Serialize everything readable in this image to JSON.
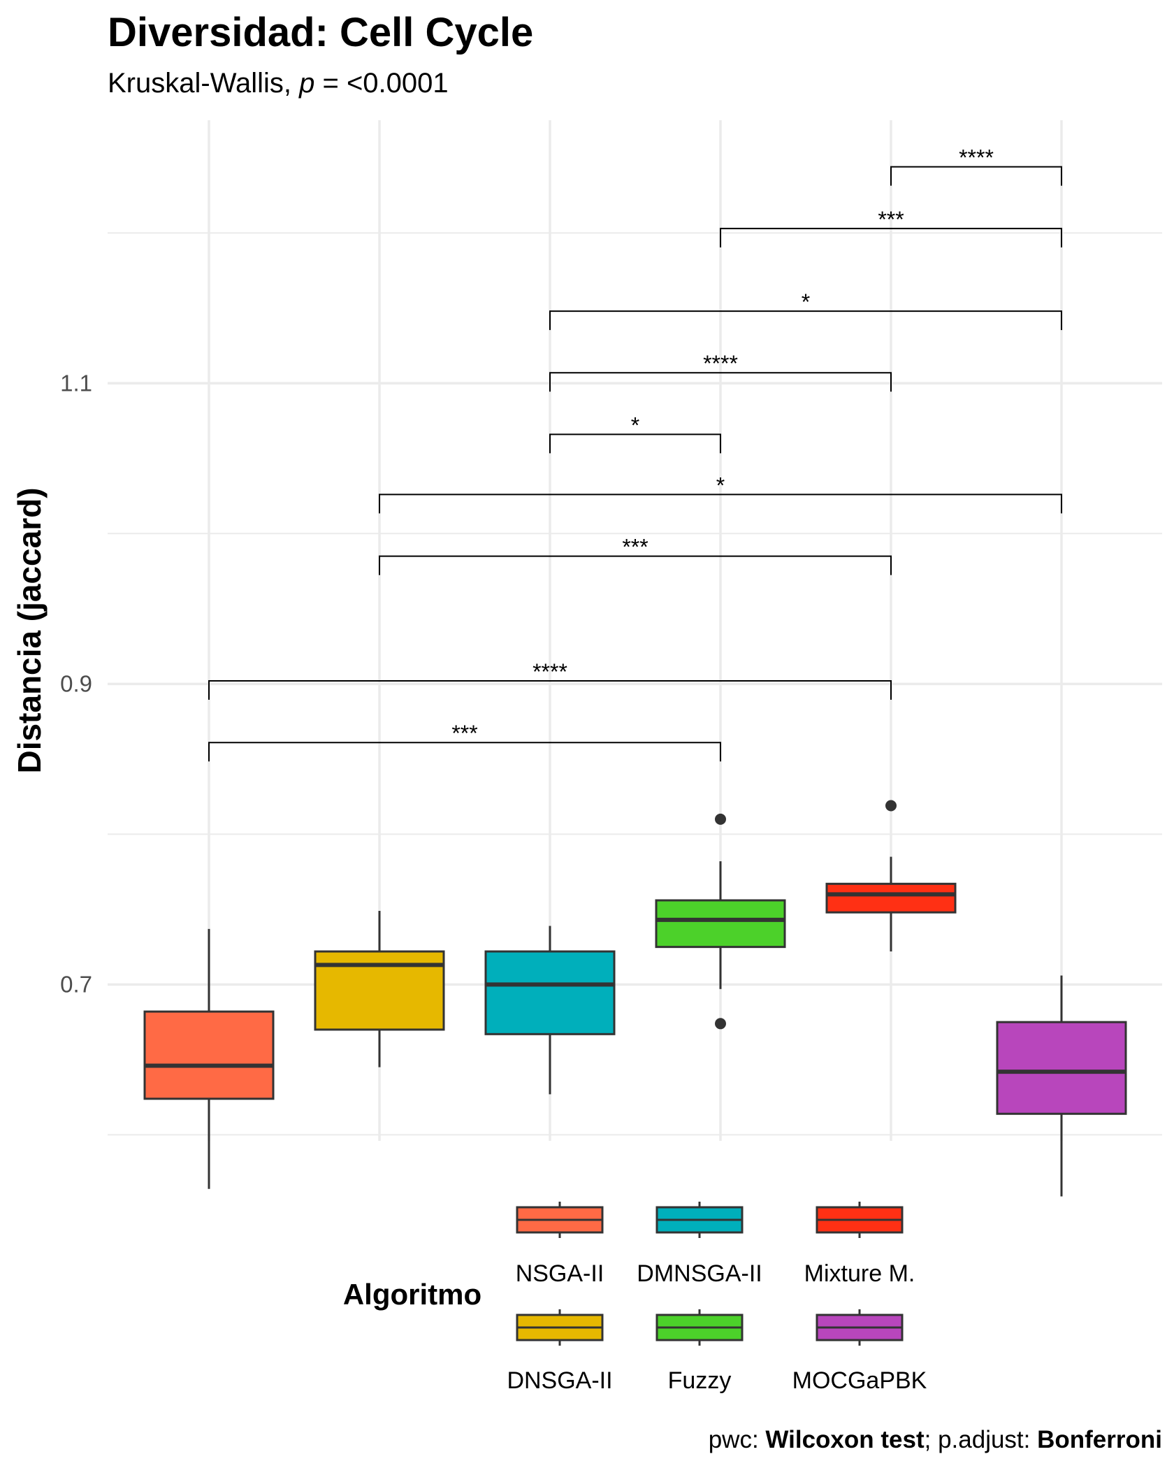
{
  "chart_data": {
    "type": "boxplot",
    "title": "Diversidad: Cell Cycle",
    "subtitle": {
      "prefix": "Kruskal-Wallis, ",
      "p_symbol": "p",
      "suffix": " = <0.0001"
    },
    "ylabel": "Distancia (jaccard)",
    "xlabel": "",
    "ylim": [
      0.596,
      1.275
    ],
    "yticks": [
      0.7,
      0.9,
      1.1
    ],
    "ytick_labels": [
      "0.7",
      "0.9",
      "1.1"
    ],
    "y_minor_gridlines": [
      0.6,
      0.8,
      1.0,
      1.2
    ],
    "grid": true,
    "categories": [
      "NSGA-II",
      "DNSGA-II",
      "DMNSGA-II",
      "Fuzzy",
      "Mixture M.",
      "MOCGaPBK"
    ],
    "series": [
      {
        "name": "NSGA-II",
        "color": "#FF6A45",
        "whisker_low": 0.564,
        "q1": 0.624,
        "median": 0.646,
        "q3": 0.682,
        "whisker_high": 0.737,
        "outliers": []
      },
      {
        "name": "DNSGA-II",
        "color": "#E6B800",
        "whisker_low": 0.645,
        "q1": 0.67,
        "median": 0.713,
        "q3": 0.722,
        "whisker_high": 0.749,
        "outliers": []
      },
      {
        "name": "DMNSGA-II",
        "color": "#00AFBB",
        "whisker_low": 0.627,
        "q1": 0.667,
        "median": 0.7,
        "q3": 0.722,
        "whisker_high": 0.739,
        "outliers": []
      },
      {
        "name": "Fuzzy",
        "color": "#4CD12A",
        "whisker_low": 0.697,
        "q1": 0.725,
        "median": 0.743,
        "q3": 0.756,
        "whisker_high": 0.782,
        "outliers": [
          0.81,
          0.674
        ]
      },
      {
        "name": "Mixture M.",
        "color": "#FF3014",
        "whisker_low": 0.722,
        "q1": 0.748,
        "median": 0.76,
        "q3": 0.767,
        "whisker_high": 0.785,
        "outliers": [
          0.819
        ]
      },
      {
        "name": "MOCGaPBK",
        "color": "#B846BC",
        "whisker_low": 0.559,
        "q1": 0.614,
        "median": 0.642,
        "q3": 0.675,
        "whisker_high": 0.706,
        "outliers": []
      }
    ],
    "comparisons": [
      {
        "group1": "NSGA-II",
        "group2": "Fuzzy",
        "y": 0.861,
        "label": "***"
      },
      {
        "group1": "NSGA-II",
        "group2": "Mixture M.",
        "y": 0.902,
        "label": "****"
      },
      {
        "group1": "DNSGA-II",
        "group2": "Mixture M.",
        "y": 0.985,
        "label": "***"
      },
      {
        "group1": "DNSGA-II",
        "group2": "MOCGaPBK",
        "y": 1.026,
        "label": "*"
      },
      {
        "group1": "DMNSGA-II",
        "group2": "Fuzzy",
        "y": 1.066,
        "label": "*"
      },
      {
        "group1": "DMNSGA-II",
        "group2": "Mixture M.",
        "y": 1.107,
        "label": "****"
      },
      {
        "group1": "DMNSGA-II",
        "group2": "MOCGaPBK",
        "y": 1.148,
        "label": "*"
      },
      {
        "group1": "Fuzzy",
        "group2": "MOCGaPBK",
        "y": 1.203,
        "label": "***"
      },
      {
        "group1": "Mixture M.",
        "group2": "MOCGaPBK",
        "y": 1.244,
        "label": "****"
      }
    ],
    "legend": {
      "title": "Algoritmo",
      "placement": "bottom",
      "entries": [
        "NSGA-II",
        "DMNSGA-II",
        "Mixture M.",
        "DNSGA-II",
        "Fuzzy",
        "MOCGaPBK"
      ]
    },
    "caption": {
      "p1": "pwc: ",
      "b1": "Wilcoxon test",
      "p2": "; p.adjust: ",
      "b2": "Bonferroni"
    }
  }
}
